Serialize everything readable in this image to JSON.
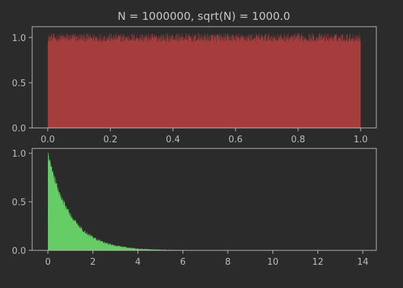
{
  "figure_title": "N = 1000000, sqrt(N) = 1000.0",
  "colors": {
    "background": "#2b2b2b",
    "axes_frame": "#bdbdbd",
    "tick_text": "#bdbdbd",
    "top_fill": "#a63d3d",
    "bottom_fill": "#66cc66"
  },
  "chart_data": [
    {
      "type": "bar",
      "title": "N = 1000000, sqrt(N) = 1000.0",
      "description_of_series": "uniform histogram (density)",
      "x_range": [
        0,
        1
      ],
      "ylim": [
        0,
        1.12
      ],
      "xticks": [
        0.0,
        0.2,
        0.4,
        0.6,
        0.8,
        1.0
      ],
      "xtick_labels": [
        "0.0",
        "0.2",
        "0.4",
        "0.6",
        "0.8",
        "1.0"
      ],
      "yticks": [
        0.0,
        0.5,
        1.0
      ],
      "ytick_labels": [
        "0.0",
        "0.5",
        "1.0"
      ],
      "xlim": [
        -0.05,
        1.05
      ],
      "bins": 1000,
      "density_level": 1.0,
      "grid": false
    },
    {
      "type": "bar",
      "title": "",
      "description_of_series": "exponential histogram (density, rate 1)",
      "x_range": [
        0,
        14
      ],
      "ylim": [
        0,
        1.05
      ],
      "xticks": [
        0,
        2,
        4,
        6,
        8,
        10,
        12,
        14
      ],
      "xtick_labels": [
        "0",
        "2",
        "4",
        "6",
        "8",
        "10",
        "12",
        "14"
      ],
      "yticks": [
        0.0,
        0.5,
        1.0
      ],
      "ytick_labels": [
        "0.0",
        "0.5",
        "1.0"
      ],
      "xlim": [
        -0.7,
        14.6
      ],
      "bins": 1000,
      "density_peak": 1.0,
      "decay_rate": 1.0,
      "grid": false
    }
  ]
}
